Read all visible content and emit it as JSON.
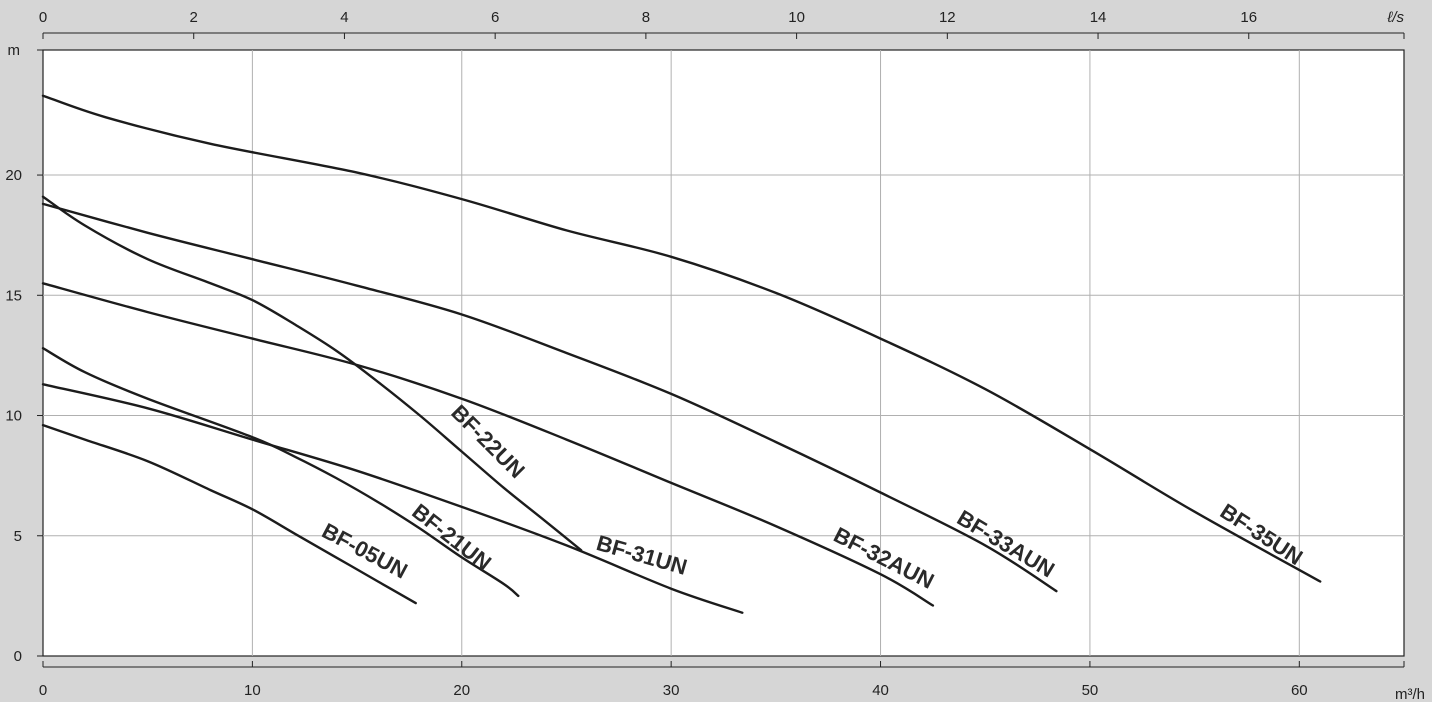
{
  "chart_data": {
    "type": "line",
    "x_unit": "m³/h",
    "x2_unit": "ℓ/s",
    "y_unit": "m",
    "xlim": [
      0,
      65
    ],
    "x2lim": [
      0,
      18.06
    ],
    "ylim": [
      0,
      25.2
    ],
    "x_ticks": [
      0,
      10,
      20,
      30,
      40,
      50,
      60
    ],
    "x2_ticks": [
      0,
      2,
      4,
      6,
      8,
      10,
      12,
      14,
      16
    ],
    "y_ticks": [
      0,
      5,
      10,
      15,
      20
    ],
    "grid": true,
    "series": [
      {
        "name": "BF-05UN",
        "label_anchor": [
          15.2,
          4.1
        ],
        "label_angle": 28,
        "points": [
          [
            0,
            9.6
          ],
          [
            2,
            9.0
          ],
          [
            5,
            8.1
          ],
          [
            8,
            6.9
          ],
          [
            10,
            6.1
          ],
          [
            12,
            5.1
          ],
          [
            14,
            4.1
          ],
          [
            16,
            3.1
          ],
          [
            17.8,
            2.2
          ]
        ]
      },
      {
        "name": "BF-21UN",
        "label_anchor": [
          19.3,
          4.7
        ],
        "label_angle": 38,
        "points": [
          [
            0,
            12.8
          ],
          [
            2,
            11.8
          ],
          [
            5,
            10.7
          ],
          [
            10,
            9.1
          ],
          [
            12,
            8.3
          ],
          [
            14,
            7.4
          ],
          [
            16,
            6.4
          ],
          [
            18,
            5.3
          ],
          [
            20,
            4.1
          ],
          [
            22,
            3.0
          ],
          [
            22.7,
            2.5
          ]
        ]
      },
      {
        "name": "BF-22UN",
        "label_anchor": [
          21.0,
          8.7
        ],
        "label_angle": 45,
        "points": [
          [
            0,
            19.1
          ],
          [
            2,
            17.9
          ],
          [
            5,
            16.5
          ],
          [
            8,
            15.5
          ],
          [
            10,
            14.8
          ],
          [
            12,
            13.8
          ],
          [
            14,
            12.7
          ],
          [
            16,
            11.4
          ],
          [
            18,
            10.0
          ],
          [
            20,
            8.5
          ],
          [
            22,
            7.0
          ],
          [
            24,
            5.6
          ],
          [
            25.7,
            4.4
          ]
        ]
      },
      {
        "name": "BF-31UN",
        "label_anchor": [
          28.5,
          3.9
        ],
        "label_angle": 16,
        "points": [
          [
            0,
            11.3
          ],
          [
            5,
            10.3
          ],
          [
            10,
            9.0
          ],
          [
            15,
            7.7
          ],
          [
            20,
            6.2
          ],
          [
            25,
            4.6
          ],
          [
            30,
            2.8
          ],
          [
            33.4,
            1.8
          ]
        ]
      },
      {
        "name": "BF-32AUN",
        "label_anchor": [
          40.0,
          3.8
        ],
        "label_angle": 27,
        "points": [
          [
            0,
            15.5
          ],
          [
            5,
            14.3
          ],
          [
            10,
            13.2
          ],
          [
            15,
            12.1
          ],
          [
            20,
            10.7
          ],
          [
            25,
            9.0
          ],
          [
            30,
            7.2
          ],
          [
            35,
            5.4
          ],
          [
            40,
            3.4
          ],
          [
            42.5,
            2.1
          ]
        ]
      },
      {
        "name": "BF-33AUN",
        "label_anchor": [
          45.8,
          4.4
        ],
        "label_angle": 31,
        "points": [
          [
            0,
            18.8
          ],
          [
            5,
            17.6
          ],
          [
            10,
            16.5
          ],
          [
            15,
            15.4
          ],
          [
            20,
            14.2
          ],
          [
            25,
            12.6
          ],
          [
            30,
            10.9
          ],
          [
            35,
            8.9
          ],
          [
            40,
            6.8
          ],
          [
            45,
            4.6
          ],
          [
            48.4,
            2.7
          ]
        ]
      },
      {
        "name": "BF-35UN",
        "label_anchor": [
          58.0,
          4.8
        ],
        "label_angle": 33,
        "points": [
          [
            0,
            23.3
          ],
          [
            3,
            22.4
          ],
          [
            8,
            21.3
          ],
          [
            15,
            20.1
          ],
          [
            20,
            19.0
          ],
          [
            25,
            17.7
          ],
          [
            30,
            16.6
          ],
          [
            35,
            15.1
          ],
          [
            40,
            13.2
          ],
          [
            45,
            11.1
          ],
          [
            50,
            8.6
          ],
          [
            55,
            6.0
          ],
          [
            61,
            3.1
          ]
        ]
      }
    ]
  }
}
